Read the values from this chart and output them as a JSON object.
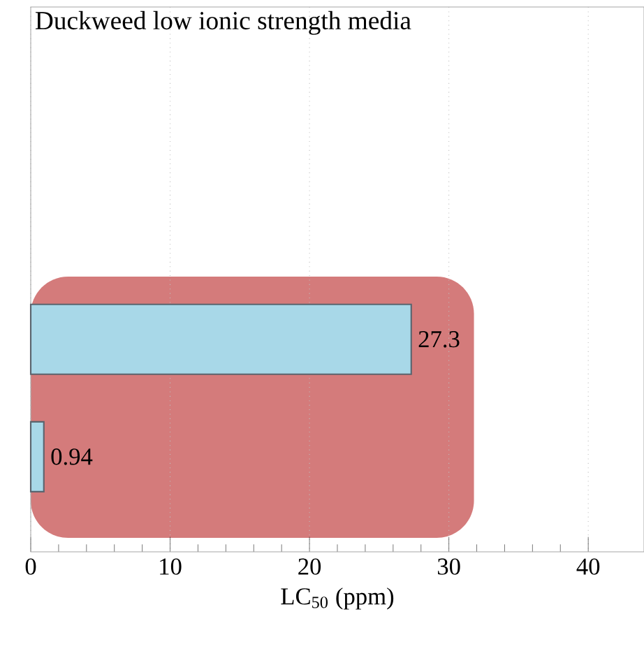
{
  "chart_data": {
    "type": "bar",
    "orientation": "horizontal",
    "title": "Duckweed low ionic strength media",
    "xlabel": "LC$_{50}$ (ppm)",
    "categories": [
      null,
      null
    ],
    "values": [
      27.3,
      0.94
    ],
    "color": "#a8d8e8",
    "data_labels": true,
    "xlim": [
      0,
      44
    ],
    "xticks": [
      0,
      10,
      20,
      30,
      40
    ],
    "grid": "x",
    "tick_labels": "x",
    "bands": [
      {
        "axis": "x",
        "from": 0,
        "to": 31.8,
        "color": "#d47b7b"
      }
    ]
  }
}
